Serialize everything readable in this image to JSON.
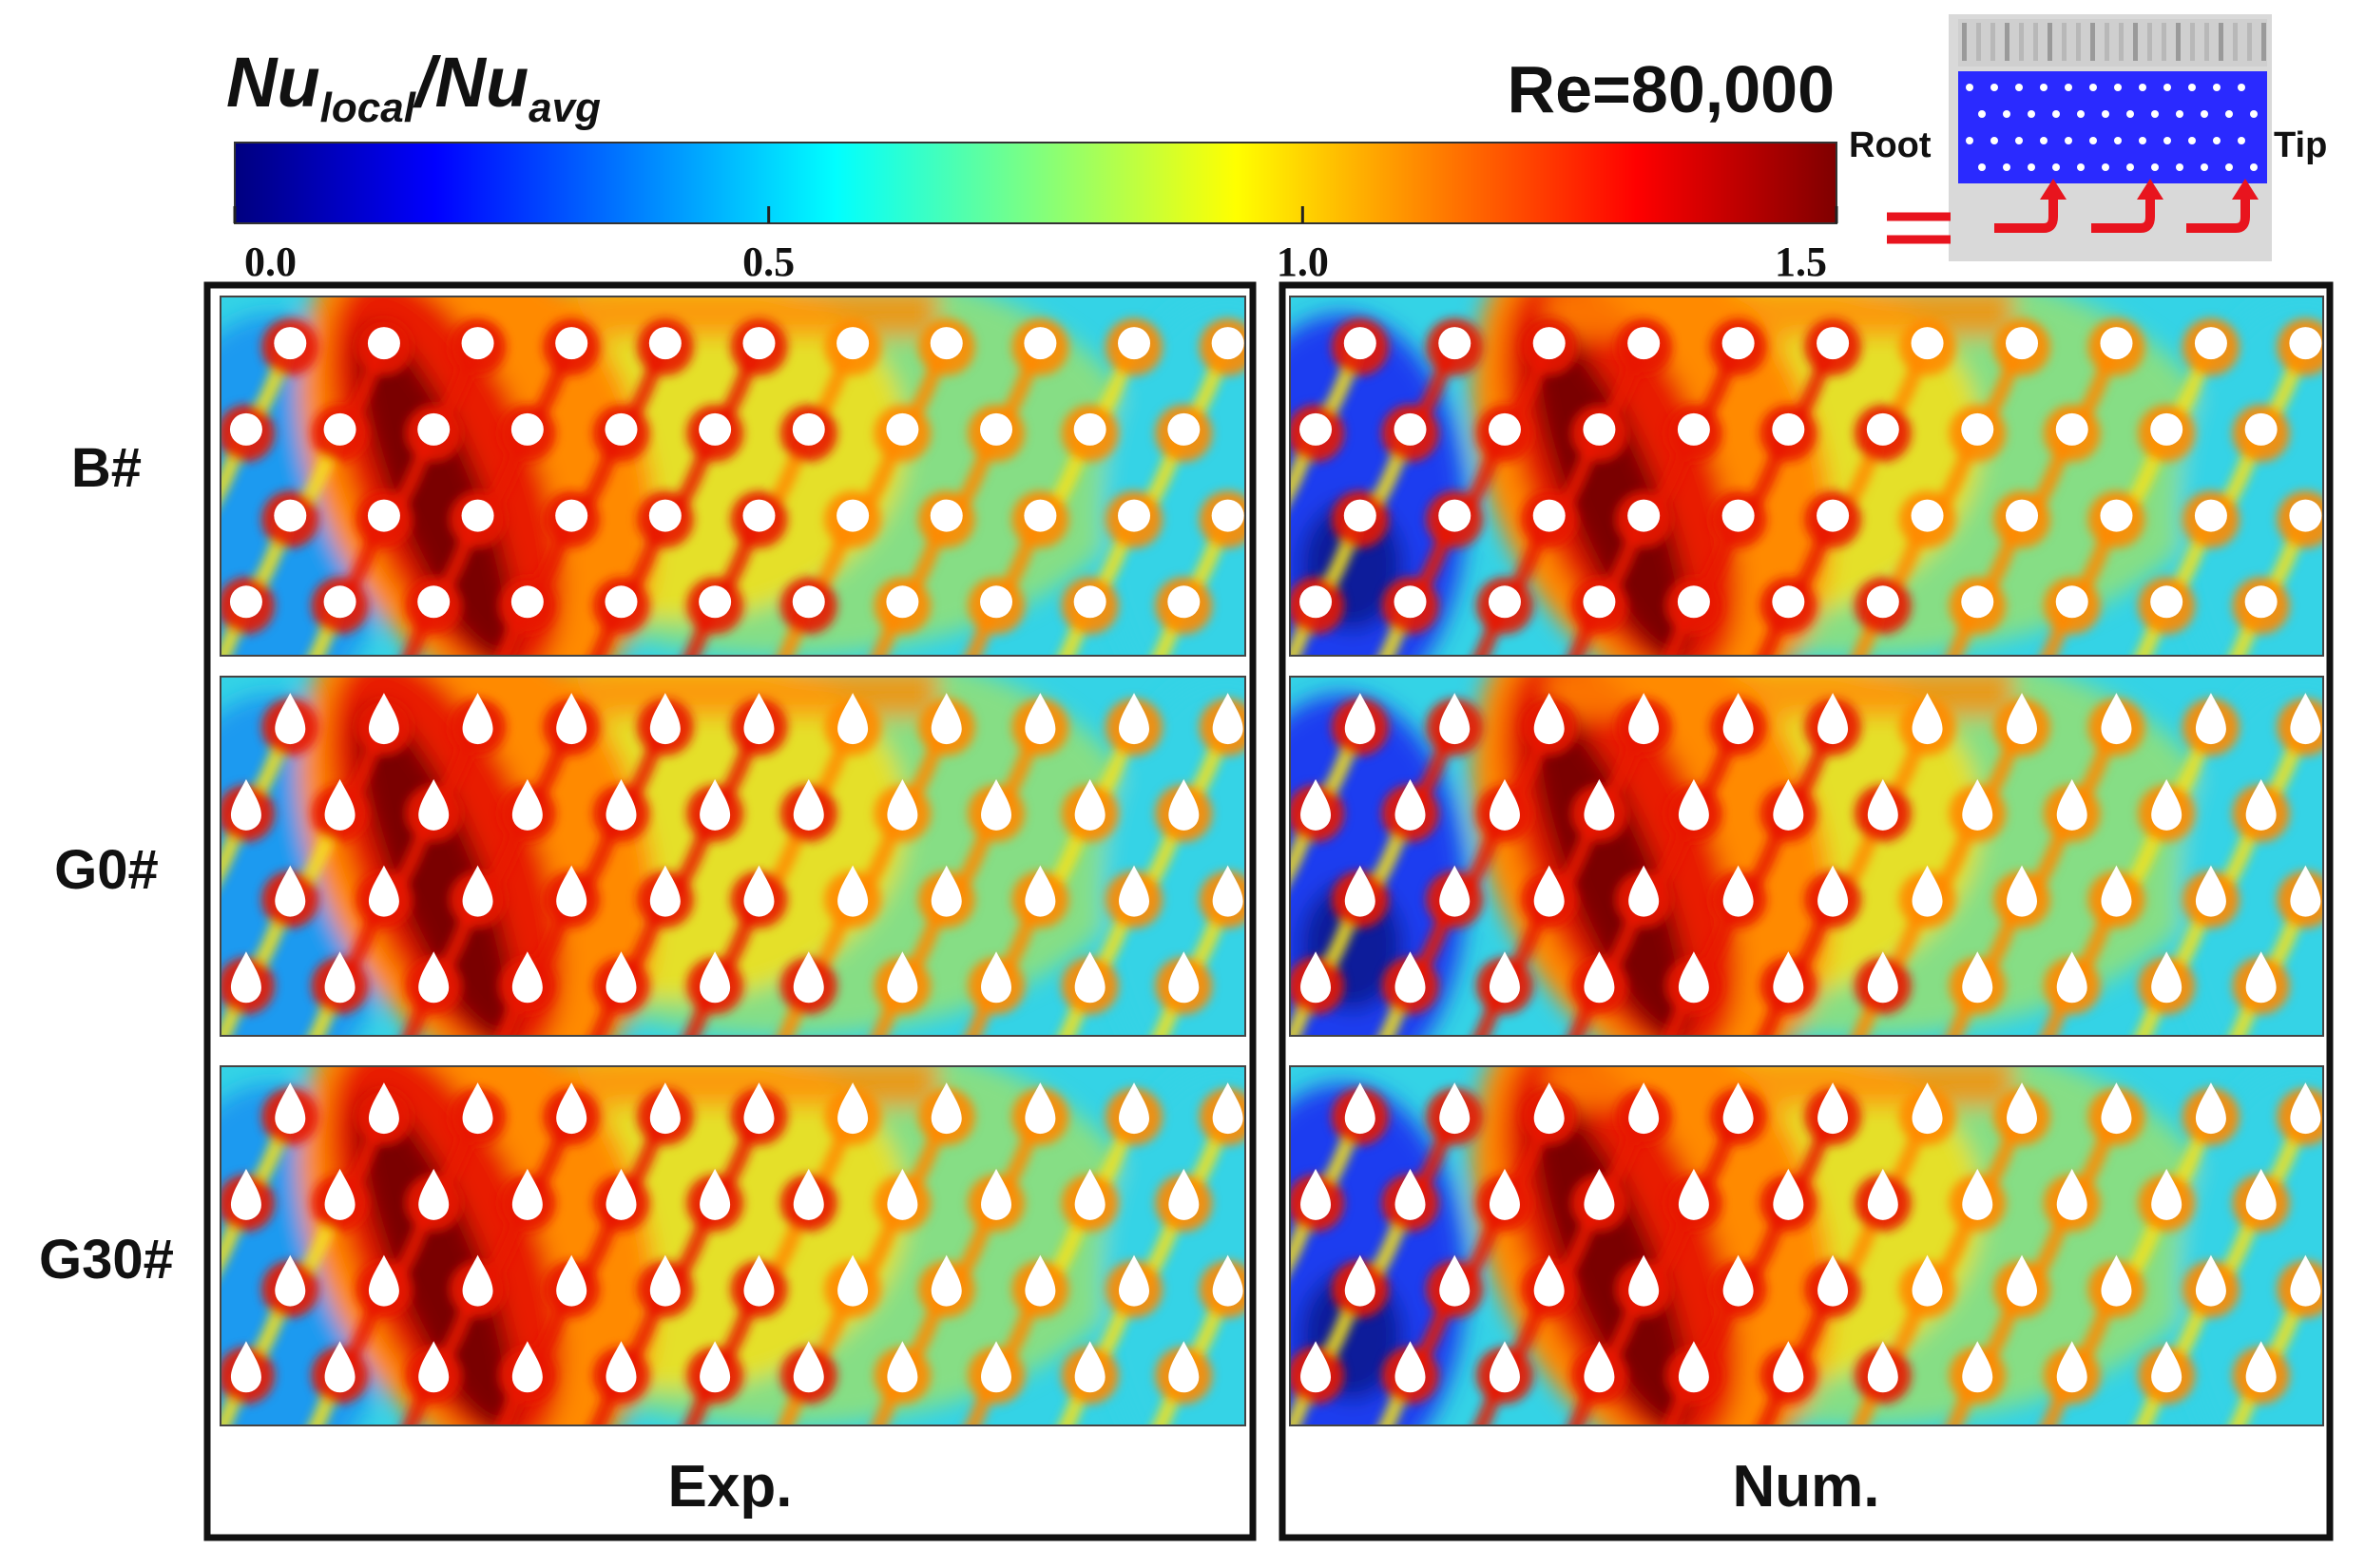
{
  "colorbar": {
    "title_main": "Nu",
    "title_sub_local": "local",
    "title_slash": "/",
    "title_sub_avg": "avg",
    "ticks": [
      "0.0",
      "0.5",
      "1.0",
      "1.5"
    ],
    "tick_values": [
      0.0,
      0.5,
      1.0,
      1.5
    ],
    "range": [
      0.0,
      1.5
    ],
    "stops": [
      "#00007f",
      "#0000ff",
      "#007fff",
      "#00ffff",
      "#7fff7f",
      "#ffff00",
      "#ff7f00",
      "#ff0000",
      "#7f0000"
    ]
  },
  "reynolds": "Re=80,000",
  "schematic": {
    "root_label": "Root",
    "tip_label": "Tip",
    "channel_color": "#2a2aff",
    "arrow_color": "#e8141e"
  },
  "rows": [
    "B#",
    "G0#",
    "G30#"
  ],
  "columns": [
    "Exp.",
    "Num."
  ],
  "colors": {
    "dark_red": "#7a0000",
    "red": "#e81a00",
    "orange": "#ff8a00",
    "yellow": "#f6e21a",
    "green": "#8fe07a",
    "cyan": "#34d3e6",
    "light_blue": "#1e9af0",
    "blue": "#1c3ef0",
    "navy": "#0a1a9a"
  }
}
